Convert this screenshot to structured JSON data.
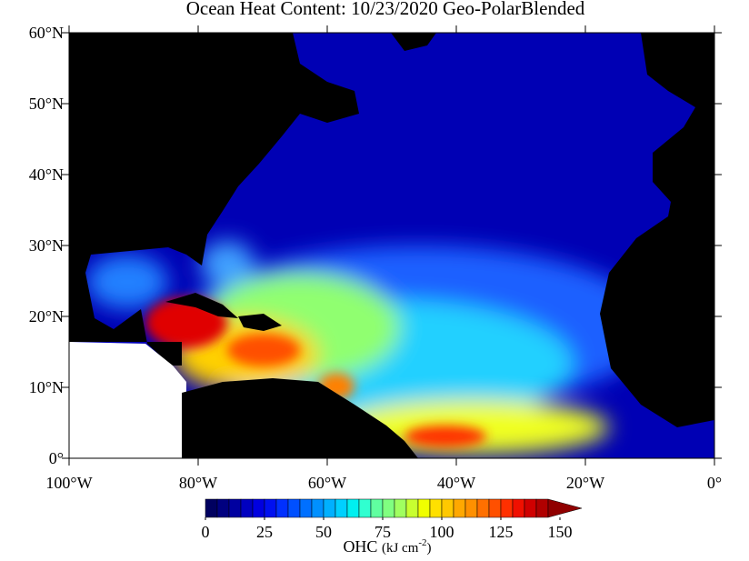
{
  "title": "Ocean Heat Content: 10/23/2020 Geo-PolarBlended",
  "map": {
    "lon_range": [
      -100,
      0
    ],
    "lat_range": [
      0,
      60
    ],
    "lon_ticks": [
      {
        "value": -100,
        "label": "100°W"
      },
      {
        "value": -80,
        "label": "80°W"
      },
      {
        "value": -60,
        "label": "60°W"
      },
      {
        "value": -40,
        "label": "40°W"
      },
      {
        "value": -20,
        "label": "20°W"
      },
      {
        "value": 0,
        "label": "0°"
      }
    ],
    "lat_ticks": [
      {
        "value": 0,
        "label": "0°"
      },
      {
        "value": 10,
        "label": "10°N"
      },
      {
        "value": 20,
        "label": "20°N"
      },
      {
        "value": 30,
        "label": "30°N"
      },
      {
        "value": 40,
        "label": "40°N"
      },
      {
        "value": 50,
        "label": "50°N"
      },
      {
        "value": 60,
        "label": "60°N"
      }
    ]
  },
  "colorbar": {
    "ticks": [
      0,
      25,
      50,
      75,
      100,
      125,
      150
    ],
    "label": "OHC",
    "unit_parts": [
      "(kJ cm",
      "-2",
      ")"
    ],
    "colors": [
      "#000060",
      "#000080",
      "#0000a0",
      "#0000c0",
      "#0000e0",
      "#0010f0",
      "#0030ff",
      "#0050ff",
      "#0070ff",
      "#0090ff",
      "#00b0ff",
      "#00d0ff",
      "#00f0f0",
      "#30ffd0",
      "#60ffa0",
      "#80ff80",
      "#a0ff60",
      "#c8ff30",
      "#f0ff00",
      "#ffe000",
      "#ffc800",
      "#ffa800",
      "#ff9000",
      "#ff7000",
      "#ff5000",
      "#ff3000",
      "#f01000",
      "#d00000",
      "#b00000",
      "#900000"
    ]
  }
}
